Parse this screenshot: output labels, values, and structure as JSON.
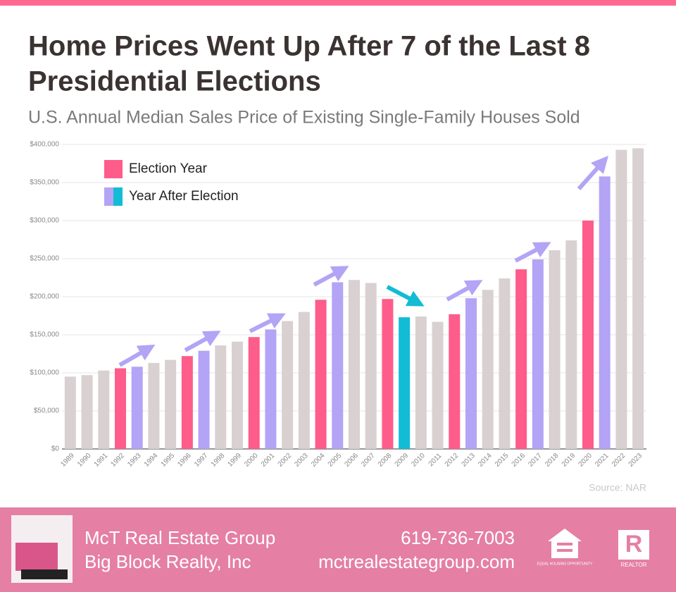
{
  "chart_data": {
    "type": "bar",
    "title": "Home Prices Went Up After 7 of the Last 8",
    "title_line2": "Presidential Elections",
    "subtitle": "U.S. Annual Median Sales Price of Existing Single-Family Houses Sold",
    "categories": [
      "1989",
      "1990",
      "1991",
      "1992",
      "1993",
      "1994",
      "1995",
      "1996",
      "1997",
      "1998",
      "1999",
      "2000",
      "2001",
      "2002",
      "2003",
      "2004",
      "2005",
      "2006",
      "2007",
      "2008",
      "2009",
      "2010",
      "2011",
      "2012",
      "2013",
      "2014",
      "2015",
      "2016",
      "2017",
      "2018",
      "2019",
      "2020",
      "2021",
      "2022",
      "2023"
    ],
    "values": [
      95000,
      97000,
      103000,
      106000,
      108000,
      113000,
      117000,
      122000,
      129000,
      136000,
      141000,
      147000,
      157000,
      168000,
      180000,
      196000,
      219000,
      222000,
      218000,
      197000,
      173000,
      174000,
      167000,
      177000,
      198000,
      209000,
      224000,
      236000,
      249000,
      261000,
      274000,
      300000,
      358000,
      393000,
      395000
    ],
    "colors": [
      "#d9d0d1",
      "#d9d0d1",
      "#d9d0d1",
      "#fe5c8a",
      "#b3a4f5",
      "#d9d0d1",
      "#d9d0d1",
      "#fe5c8a",
      "#b3a4f5",
      "#d9d0d1",
      "#d9d0d1",
      "#fe5c8a",
      "#b3a4f5",
      "#d9d0d1",
      "#d9d0d1",
      "#fe5c8a",
      "#b3a4f5",
      "#d9d0d1",
      "#d9d0d1",
      "#fe5c8a",
      "#11bcd4",
      "#d9d0d1",
      "#d9d0d1",
      "#fe5c8a",
      "#b3a4f5",
      "#d9d0d1",
      "#d9d0d1",
      "#fe5c8a",
      "#b3a4f5",
      "#d9d0d1",
      "#d9d0d1",
      "#fe5c8a",
      "#b3a4f5",
      "#d9d0d1",
      "#d9d0d1"
    ],
    "legend": [
      {
        "name": "Election Year",
        "colors": [
          "#fe5c8a"
        ]
      },
      {
        "name": "Year After Election",
        "colors": [
          "#b3a4f5",
          "#11bcd4"
        ]
      }
    ],
    "ylim": [
      0,
      400000
    ],
    "yticks": [
      {
        "value": 0,
        "label": "$0"
      },
      {
        "value": 50000,
        "label": "$50,000"
      },
      {
        "value": 100000,
        "label": "$100,000"
      },
      {
        "value": 150000,
        "label": "$150,000"
      },
      {
        "value": 200000,
        "label": "$200,000"
      },
      {
        "value": 250000,
        "label": "$250,000"
      },
      {
        "value": 300000,
        "label": "$300,000"
      },
      {
        "value": 350000,
        "label": "$350,000"
      },
      {
        "value": 400000,
        "label": "$400,000"
      }
    ],
    "grid": true,
    "source": "Source: NAR"
  },
  "footer": {
    "company": "McT Real Estate Group",
    "brokerage": "Big Block Realty, Inc",
    "phone": "619-736-7003",
    "website": "mctrealestategroup.com",
    "equal_housing": "EQUAL HOUSING OPPORTUNITY",
    "realtor": "REALTOR"
  }
}
